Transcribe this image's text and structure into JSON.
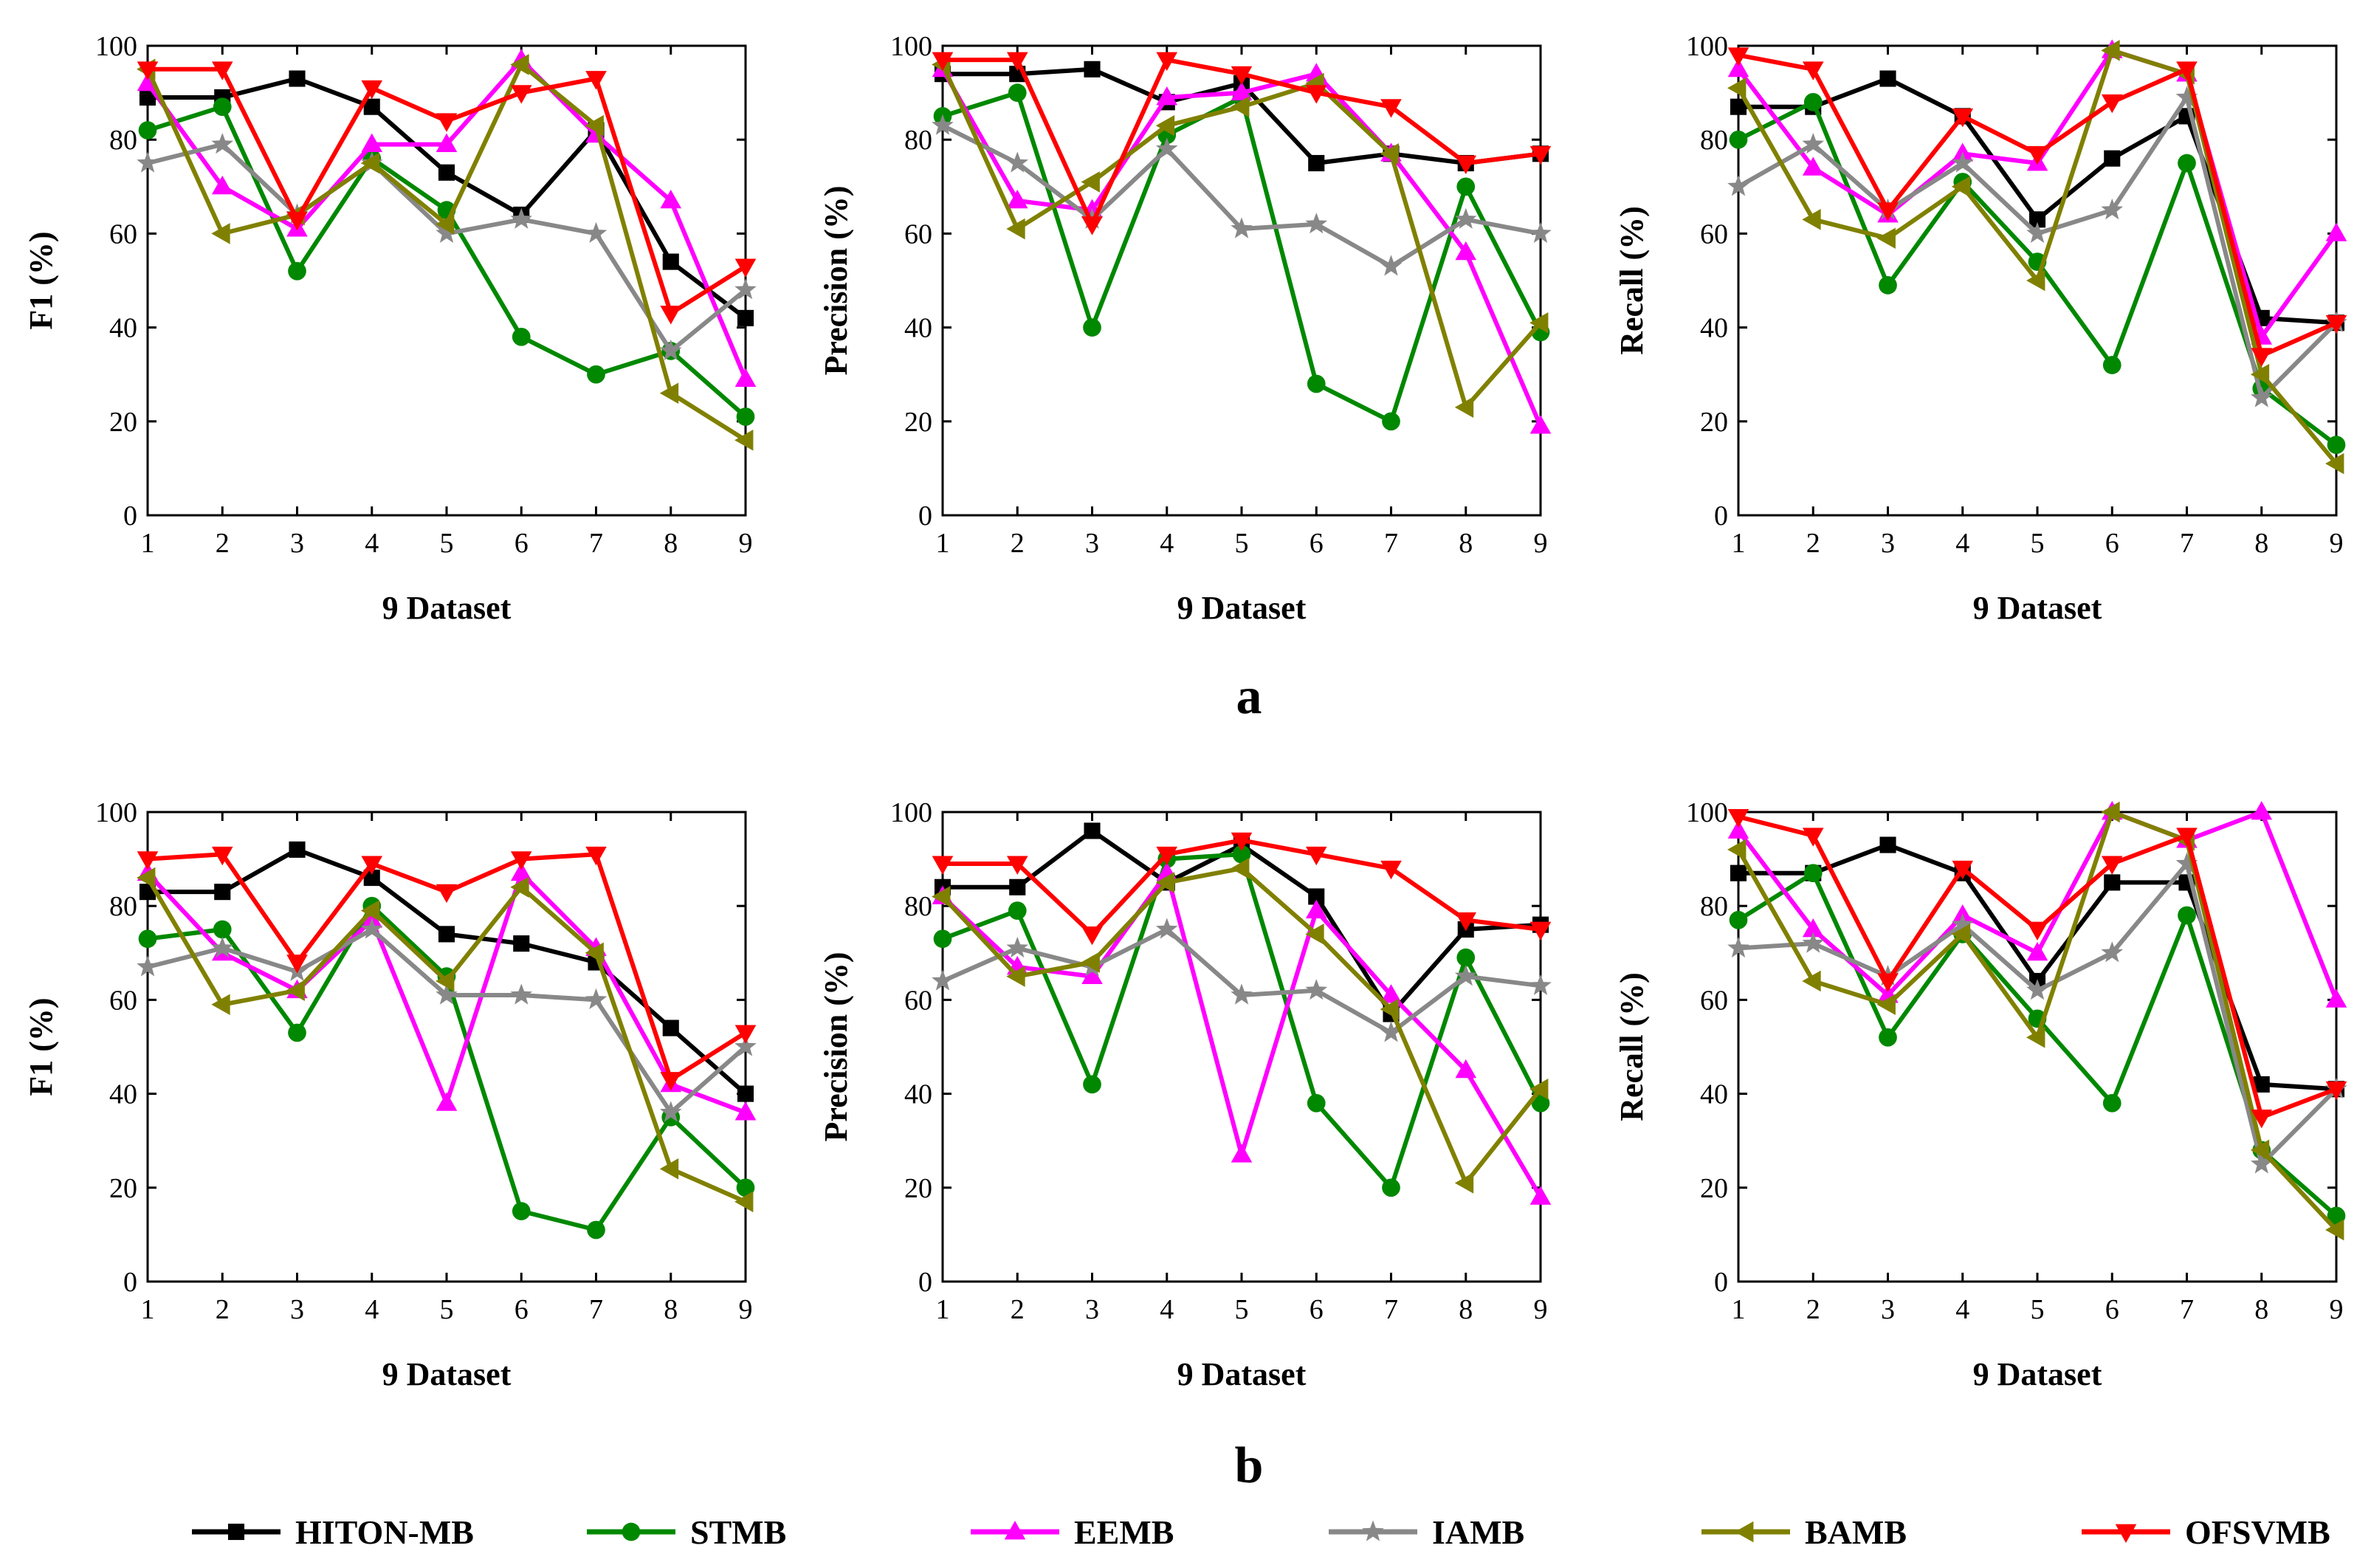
{
  "figure": {
    "panel_labels": [
      "a",
      "b"
    ]
  },
  "legend": [
    {
      "name": "HITON-MB",
      "color": "#000000",
      "marker": "square"
    },
    {
      "name": "STMB",
      "color": "#008800",
      "marker": "circle"
    },
    {
      "name": "EEMB",
      "color": "#ff00ff",
      "marker": "triangle-up"
    },
    {
      "name": "IAMB",
      "color": "#888888",
      "marker": "star"
    },
    {
      "name": "BAMB",
      "color": "#808000",
      "marker": "triangle-left"
    },
    {
      "name": "OFSVMB",
      "color": "#ff0000",
      "marker": "triangle-down"
    }
  ],
  "chart_data": [
    {
      "type": "line",
      "group": "a",
      "title": "",
      "xlabel": "9 Dataset",
      "ylabel": "F1 (%)",
      "categories": [
        "1",
        "2",
        "3",
        "4",
        "5",
        "6",
        "7",
        "8",
        "9"
      ],
      "yticks": [
        "0",
        "20",
        "40",
        "60",
        "80",
        "100"
      ],
      "ylim": [
        0,
        100
      ],
      "series": [
        {
          "name": "HITON-MB",
          "values": [
            89,
            89,
            93,
            87,
            73,
            64,
            82,
            54,
            42
          ]
        },
        {
          "name": "STMB",
          "values": [
            82,
            87,
            52,
            76,
            65,
            38,
            30,
            35,
            21
          ]
        },
        {
          "name": "EEMB",
          "values": [
            92,
            70,
            61,
            79,
            79,
            97,
            81,
            67,
            29
          ]
        },
        {
          "name": "IAMB",
          "values": [
            75,
            79,
            64,
            75,
            60,
            63,
            60,
            35,
            48
          ]
        },
        {
          "name": "BAMB",
          "values": [
            95,
            60,
            64,
            75,
            62,
            96,
            83,
            26,
            16
          ]
        },
        {
          "name": "OFSVMB",
          "values": [
            95,
            95,
            63,
            91,
            84,
            90,
            93,
            43,
            53
          ]
        }
      ]
    },
    {
      "type": "line",
      "group": "a",
      "title": "",
      "xlabel": "9 Dataset",
      "ylabel": "Precision (%)",
      "categories": [
        "1",
        "2",
        "3",
        "4",
        "5",
        "6",
        "7",
        "8",
        "9"
      ],
      "yticks": [
        "0",
        "20",
        "40",
        "60",
        "80",
        "100"
      ],
      "ylim": [
        0,
        100
      ],
      "series": [
        {
          "name": "HITON-MB",
          "values": [
            94,
            94,
            95,
            88,
            92,
            75,
            77,
            75,
            77
          ]
        },
        {
          "name": "STMB",
          "values": [
            85,
            90,
            40,
            81,
            89,
            28,
            20,
            70,
            39
          ]
        },
        {
          "name": "EEMB",
          "values": [
            95,
            67,
            65,
            89,
            90,
            94,
            77,
            56,
            19
          ]
        },
        {
          "name": "IAMB",
          "values": [
            83,
            75,
            63,
            78,
            61,
            62,
            53,
            63,
            60
          ]
        },
        {
          "name": "BAMB",
          "values": [
            96,
            61,
            71,
            83,
            87,
            92,
            77,
            23,
            41
          ]
        },
        {
          "name": "OFSVMB",
          "values": [
            97,
            97,
            62,
            97,
            94,
            90,
            87,
            75,
            77
          ]
        }
      ]
    },
    {
      "type": "line",
      "group": "a",
      "title": "",
      "xlabel": "9 Dataset",
      "ylabel": "Recall (%)",
      "categories": [
        "1",
        "2",
        "3",
        "4",
        "5",
        "6",
        "7",
        "8",
        "9"
      ],
      "yticks": [
        "0",
        "20",
        "40",
        "60",
        "80",
        "100"
      ],
      "ylim": [
        0,
        100
      ],
      "series": [
        {
          "name": "HITON-MB",
          "values": [
            87,
            87,
            93,
            85,
            63,
            76,
            85,
            42,
            41
          ]
        },
        {
          "name": "STMB",
          "values": [
            80,
            88,
            49,
            71,
            54,
            32,
            75,
            27,
            15
          ]
        },
        {
          "name": "EEMB",
          "values": [
            95,
            74,
            64,
            77,
            75,
            99,
            94,
            38,
            60
          ]
        },
        {
          "name": "IAMB",
          "values": [
            70,
            79,
            65,
            75,
            60,
            65,
            89,
            25,
            41
          ]
        },
        {
          "name": "BAMB",
          "values": [
            91,
            63,
            59,
            70,
            50,
            99,
            94,
            30,
            11
          ]
        },
        {
          "name": "OFSVMB",
          "values": [
            98,
            95,
            65,
            85,
            77,
            88,
            95,
            34,
            41
          ]
        }
      ]
    },
    {
      "type": "line",
      "group": "b",
      "title": "",
      "xlabel": "9 Dataset",
      "ylabel": "F1 (%)",
      "categories": [
        "1",
        "2",
        "3",
        "4",
        "5",
        "6",
        "7",
        "8",
        "9"
      ],
      "yticks": [
        "0",
        "20",
        "40",
        "60",
        "80",
        "100"
      ],
      "ylim": [
        0,
        100
      ],
      "series": [
        {
          "name": "HITON-MB",
          "values": [
            83,
            83,
            92,
            86,
            74,
            72,
            68,
            54,
            40
          ]
        },
        {
          "name": "STMB",
          "values": [
            73,
            75,
            53,
            80,
            65,
            15,
            11,
            35,
            20
          ]
        },
        {
          "name": "EEMB",
          "values": [
            87,
            70,
            62,
            77,
            38,
            87,
            71,
            42,
            36
          ]
        },
        {
          "name": "IAMB",
          "values": [
            67,
            71,
            66,
            75,
            61,
            61,
            60,
            36,
            50
          ]
        },
        {
          "name": "BAMB",
          "values": [
            86,
            59,
            62,
            79,
            64,
            84,
            70,
            24,
            17
          ]
        },
        {
          "name": "OFSVMB",
          "values": [
            90,
            91,
            68,
            89,
            83,
            90,
            91,
            43,
            53
          ]
        }
      ]
    },
    {
      "type": "line",
      "group": "b",
      "title": "",
      "xlabel": "9 Dataset",
      "ylabel": "Precision (%)",
      "categories": [
        "1",
        "2",
        "3",
        "4",
        "5",
        "6",
        "7",
        "8",
        "9"
      ],
      "yticks": [
        "0",
        "20",
        "40",
        "60",
        "80",
        "100"
      ],
      "ylim": [
        0,
        100
      ],
      "series": [
        {
          "name": "HITON-MB",
          "values": [
            84,
            84,
            96,
            85,
            93,
            82,
            57,
            75,
            76
          ]
        },
        {
          "name": "STMB",
          "values": [
            73,
            79,
            42,
            90,
            91,
            38,
            20,
            69,
            38
          ]
        },
        {
          "name": "EEMB",
          "values": [
            82,
            67,
            65,
            87,
            27,
            79,
            61,
            45,
            18
          ]
        },
        {
          "name": "IAMB",
          "values": [
            64,
            71,
            67,
            75,
            61,
            62,
            53,
            65,
            63
          ]
        },
        {
          "name": "BAMB",
          "values": [
            82,
            65,
            68,
            85,
            88,
            74,
            58,
            21,
            41
          ]
        },
        {
          "name": "OFSVMB",
          "values": [
            89,
            89,
            74,
            91,
            94,
            91,
            88,
            77,
            75
          ]
        }
      ]
    },
    {
      "type": "line",
      "group": "b",
      "title": "",
      "xlabel": "9 Dataset",
      "ylabel": "Recall (%)",
      "categories": [
        "1",
        "2",
        "3",
        "4",
        "5",
        "6",
        "7",
        "8",
        "9"
      ],
      "yticks": [
        "0",
        "20",
        "40",
        "60",
        "80",
        "100"
      ],
      "ylim": [
        0,
        100
      ],
      "series": [
        {
          "name": "HITON-MB",
          "values": [
            87,
            87,
            93,
            87,
            64,
            85,
            85,
            42,
            41
          ]
        },
        {
          "name": "STMB",
          "values": [
            77,
            87,
            52,
            74,
            56,
            38,
            78,
            28,
            14
          ]
        },
        {
          "name": "EEMB",
          "values": [
            96,
            75,
            61,
            78,
            70,
            100,
            94,
            100,
            60
          ]
        },
        {
          "name": "IAMB",
          "values": [
            71,
            72,
            65,
            76,
            62,
            70,
            89,
            25,
            41
          ]
        },
        {
          "name": "BAMB",
          "values": [
            92,
            64,
            59,
            74,
            52,
            100,
            94,
            28,
            11
          ]
        },
        {
          "name": "OFSVMB",
          "values": [
            99,
            95,
            64,
            88,
            75,
            89,
            95,
            35,
            41
          ]
        }
      ]
    }
  ]
}
